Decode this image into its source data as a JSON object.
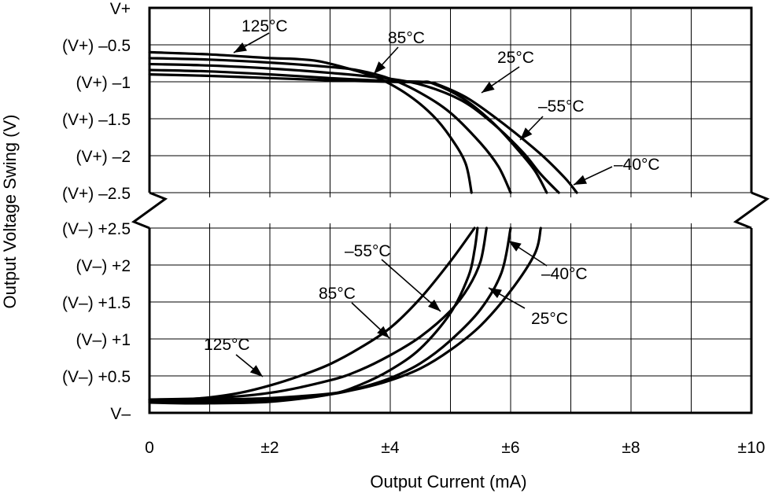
{
  "chart_data": {
    "type": "line",
    "title": "",
    "xlabel": "Output Current (mA)",
    "ylabel": "Output Voltage Swing (V)",
    "xlim": [
      0,
      10
    ],
    "x_ticks": [
      {
        "value": 0,
        "label": "0"
      },
      {
        "value": 2,
        "label": "±2"
      },
      {
        "value": 4,
        "label": "±4"
      },
      {
        "value": 6,
        "label": "±6"
      },
      {
        "value": 8,
        "label": "±8"
      },
      {
        "value": 10,
        "label": "±10"
      }
    ],
    "y_ticks_upper": [
      {
        "value": 0,
        "label": "V+"
      },
      {
        "value": -0.5,
        "label": "(V+) –0.5"
      },
      {
        "value": -1,
        "label": "(V+) –1"
      },
      {
        "value": -1.5,
        "label": "(V+) –1.5"
      },
      {
        "value": -2,
        "label": "(V+) –2"
      },
      {
        "value": -2.5,
        "label": "(V+) –2.5"
      }
    ],
    "y_ticks_lower": [
      {
        "value": 2.5,
        "label": "(V–) +2.5"
      },
      {
        "value": 2,
        "label": "(V–) +2"
      },
      {
        "value": 1.5,
        "label": "(V–) +1.5"
      },
      {
        "value": 1,
        "label": "(V–) +1"
      },
      {
        "value": 0.5,
        "label": "(V–) +0.5"
      },
      {
        "value": 0,
        "label": "V–"
      }
    ],
    "grid": true,
    "axis_break": "between (V+) –2.5 and (V–) +2.5",
    "series": [
      {
        "name": "125°C",
        "upper": [
          [
            0,
            -0.6
          ],
          [
            1,
            -0.63
          ],
          [
            2,
            -0.68
          ],
          [
            2.4,
            -0.69
          ],
          [
            2.8,
            -0.72
          ],
          [
            3.3,
            -0.82
          ],
          [
            3.8,
            -0.95
          ],
          [
            4.3,
            -1.18
          ],
          [
            4.7,
            -1.45
          ],
          [
            5.0,
            -1.75
          ],
          [
            5.25,
            -2.1
          ],
          [
            5.35,
            -2.5
          ]
        ],
        "lower": [
          [
            0,
            0.18
          ],
          [
            0.5,
            0.18
          ],
          [
            1,
            0.21
          ],
          [
            1.5,
            0.27
          ],
          [
            2,
            0.37
          ],
          [
            2.5,
            0.5
          ],
          [
            3,
            0.66
          ],
          [
            3.5,
            0.88
          ],
          [
            4,
            1.15
          ],
          [
            4.5,
            1.55
          ],
          [
            5,
            2.05
          ],
          [
            5.4,
            2.5
          ]
        ]
      },
      {
        "name": "85°C",
        "upper": [
          [
            0,
            -0.68
          ],
          [
            1,
            -0.7
          ],
          [
            2,
            -0.74
          ],
          [
            3,
            -0.8
          ],
          [
            3.5,
            -0.85
          ],
          [
            4,
            -0.96
          ],
          [
            4.5,
            -1.15
          ],
          [
            5,
            -1.42
          ],
          [
            5.5,
            -1.83
          ],
          [
            5.8,
            -2.15
          ],
          [
            6,
            -2.5
          ]
        ],
        "lower": [
          [
            0,
            0.18
          ],
          [
            1,
            0.2
          ],
          [
            2,
            0.27
          ],
          [
            3,
            0.44
          ],
          [
            3.5,
            0.58
          ],
          [
            4,
            0.78
          ],
          [
            4.5,
            1.03
          ],
          [
            5,
            1.38
          ],
          [
            5.3,
            1.7
          ],
          [
            5.5,
            2.05
          ],
          [
            5.6,
            2.5
          ]
        ]
      },
      {
        "name": "25°C",
        "upper": [
          [
            0,
            -0.76
          ],
          [
            1,
            -0.78
          ],
          [
            2,
            -0.82
          ],
          [
            3,
            -0.88
          ],
          [
            4,
            -0.96
          ],
          [
            4.6,
            -1.06
          ],
          [
            5.2,
            -1.26
          ],
          [
            5.7,
            -1.56
          ],
          [
            6.2,
            -1.95
          ],
          [
            6.5,
            -2.25
          ],
          [
            6.8,
            -2.5
          ]
        ],
        "lower": [
          [
            0,
            0.17
          ],
          [
            1,
            0.18
          ],
          [
            2,
            0.2
          ],
          [
            3,
            0.26
          ],
          [
            3.5,
            0.33
          ],
          [
            4,
            0.44
          ],
          [
            4.5,
            0.6
          ],
          [
            5,
            0.85
          ],
          [
            5.5,
            1.18
          ],
          [
            6,
            1.65
          ],
          [
            6.4,
            2.15
          ],
          [
            6.5,
            2.5
          ]
        ]
      },
      {
        "name": "–55°C",
        "upper": [
          [
            0,
            -0.84
          ],
          [
            1,
            -0.86
          ],
          [
            2,
            -0.9
          ],
          [
            3,
            -0.95
          ],
          [
            4,
            -0.99
          ],
          [
            4.5,
            -1.0
          ],
          [
            4.7,
            -1.02
          ],
          [
            5.2,
            -1.22
          ],
          [
            5.7,
            -1.55
          ],
          [
            6.1,
            -1.9
          ],
          [
            6.4,
            -2.2
          ],
          [
            6.6,
            -2.5
          ]
        ],
        "lower": [
          [
            0,
            0.14
          ],
          [
            0.5,
            0.13
          ],
          [
            1,
            0.13
          ],
          [
            2,
            0.15
          ],
          [
            3,
            0.25
          ],
          [
            3.5,
            0.38
          ],
          [
            4,
            0.58
          ],
          [
            4.5,
            0.87
          ],
          [
            5,
            1.35
          ],
          [
            5.3,
            1.85
          ],
          [
            5.4,
            2.2
          ],
          [
            5.45,
            2.5
          ]
        ]
      },
      {
        "name": "–40°C",
        "upper": [
          [
            0,
            -0.9
          ],
          [
            1,
            -0.92
          ],
          [
            2,
            -0.95
          ],
          [
            3,
            -0.98
          ],
          [
            4,
            -1.0
          ],
          [
            4.6,
            -1.01
          ],
          [
            4.8,
            -1.04
          ],
          [
            5.3,
            -1.23
          ],
          [
            5.9,
            -1.58
          ],
          [
            6.5,
            -1.98
          ],
          [
            6.9,
            -2.3
          ],
          [
            7.1,
            -2.5
          ]
        ],
        "lower": [
          [
            0,
            0.15
          ],
          [
            0.5,
            0.15
          ],
          [
            1,
            0.15
          ],
          [
            2,
            0.17
          ],
          [
            3,
            0.25
          ],
          [
            3.5,
            0.34
          ],
          [
            4,
            0.47
          ],
          [
            4.5,
            0.67
          ],
          [
            5,
            0.98
          ],
          [
            5.5,
            1.4
          ],
          [
            5.85,
            1.9
          ],
          [
            6,
            2.5
          ]
        ]
      }
    ],
    "annotations": [
      {
        "label": "125°C",
        "series": "125°C",
        "region": "upper"
      },
      {
        "label": "85°C",
        "series": "85°C",
        "region": "upper"
      },
      {
        "label": "25°C",
        "series": "25°C",
        "region": "upper"
      },
      {
        "label": "–55°C",
        "series": "–55°C",
        "region": "upper"
      },
      {
        "label": "–40°C",
        "series": "–40°C",
        "region": "upper"
      },
      {
        "label": "–40°C",
        "series": "–40°C",
        "region": "lower"
      },
      {
        "label": "–55°C",
        "series": "–55°C",
        "region": "lower"
      },
      {
        "label": "85°C",
        "series": "85°C",
        "region": "lower"
      },
      {
        "label": "25°C",
        "series": "25°C",
        "region": "lower"
      },
      {
        "label": "125°C",
        "series": "125°C",
        "region": "lower"
      }
    ]
  }
}
